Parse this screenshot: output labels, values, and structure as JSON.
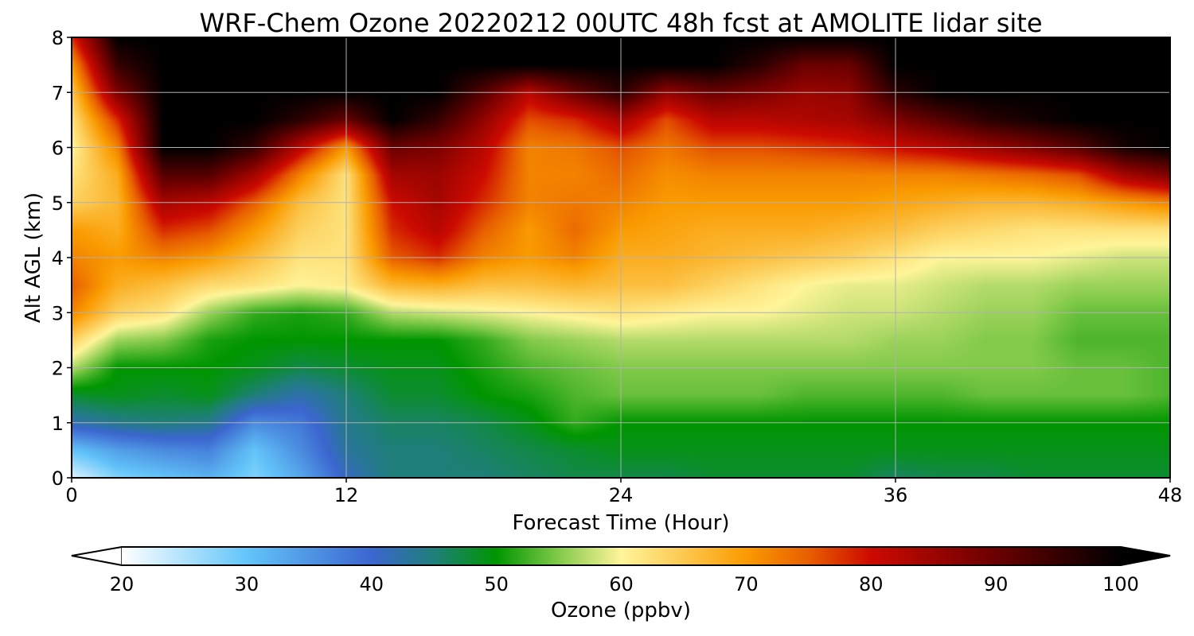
{
  "chart_data": {
    "type": "heatmap",
    "title": "WRF-Chem Ozone  20220212 00UTC 48h fcst at AMOLITE lidar site",
    "xlabel": "Forecast Time (Hour)",
    "ylabel": "Alt AGL (km)",
    "xlim": [
      0,
      48
    ],
    "ylim": [
      0,
      8
    ],
    "x_ticks": [
      "0",
      "12",
      "24",
      "36",
      "48"
    ],
    "y_ticks": [
      "0",
      "1",
      "2",
      "3",
      "4",
      "5",
      "6",
      "7",
      "8"
    ],
    "grid": true,
    "colorbar": {
      "label": "Ozone  (ppbv)",
      "range": [
        20,
        100
      ],
      "ticks": [
        "20",
        "30",
        "40",
        "50",
        "60",
        "70",
        "80",
        "90",
        "100"
      ],
      "extend": "both",
      "orientation": "horizontal",
      "stops": [
        {
          "v": 20,
          "c": "#ffffff"
        },
        {
          "v": 30,
          "c": "#63c5f9"
        },
        {
          "v": 40,
          "c": "#3b66cf"
        },
        {
          "v": 45,
          "c": "#1f7f7a"
        },
        {
          "v": 50,
          "c": "#009600"
        },
        {
          "v": 55,
          "c": "#82ca4a"
        },
        {
          "v": 60,
          "c": "#fff59a"
        },
        {
          "v": 65,
          "c": "#fcc850"
        },
        {
          "v": 70,
          "c": "#fa9b00"
        },
        {
          "v": 75,
          "c": "#e85f00"
        },
        {
          "v": 80,
          "c": "#cc0a00"
        },
        {
          "v": 90,
          "c": "#6a0000"
        },
        {
          "v": 100,
          "c": "#000000"
        }
      ]
    },
    "x": [
      0,
      2,
      4,
      6,
      8,
      10,
      12,
      14,
      16,
      18,
      20,
      22,
      24,
      26,
      28,
      30,
      32,
      34,
      36,
      38,
      40,
      42,
      44,
      46,
      48
    ],
    "y": [
      0,
      0.5,
      1,
      1.5,
      2,
      2.5,
      3,
      3.5,
      4,
      4.5,
      5,
      5.5,
      6,
      6.5,
      7,
      7.5,
      8
    ],
    "z": [
      [
        22,
        28,
        30,
        32,
        28,
        33,
        41,
        45,
        45,
        45,
        46,
        47,
        47,
        47,
        48,
        48,
        48,
        48,
        46,
        47,
        47,
        48,
        48,
        48,
        48
      ],
      [
        30,
        34,
        36,
        37,
        30,
        36,
        43,
        45,
        45,
        46,
        47,
        48,
        49,
        49,
        49,
        49,
        49,
        49,
        49,
        49,
        49,
        49,
        49,
        49,
        49
      ],
      [
        42,
        44,
        45,
        44,
        36,
        38,
        44,
        46,
        46,
        47,
        49,
        52,
        50,
        50,
        50,
        50,
        50,
        50,
        50,
        50,
        50,
        50,
        50,
        50,
        50
      ],
      [
        48,
        49,
        48,
        49,
        45,
        42,
        45,
        48,
        48,
        50,
        51,
        53,
        54,
        54,
        54,
        54,
        53,
        53,
        53,
        53,
        54,
        54,
        54,
        54,
        53
      ],
      [
        57,
        50,
        50,
        50,
        49,
        47,
        48,
        49,
        49,
        51,
        53,
        54,
        55,
        55,
        55,
        55,
        55,
        55,
        55,
        55,
        55,
        55,
        54,
        54,
        53
      ],
      [
        64,
        56,
        55,
        51,
        50,
        50,
        50,
        50,
        50,
        52,
        55,
        56,
        57,
        57,
        57,
        57,
        57,
        57,
        56,
        56,
        55,
        55,
        53,
        53,
        53
      ],
      [
        72,
        64,
        62,
        56,
        52,
        51,
        52,
        57,
        58,
        59,
        60,
        61,
        62,
        61,
        60,
        60,
        59,
        58,
        58,
        57,
        56,
        56,
        54,
        54,
        54
      ],
      [
        75,
        68,
        66,
        63,
        62,
        60,
        61,
        67,
        68,
        66,
        66,
        67,
        66,
        66,
        64,
        62,
        60,
        59,
        59,
        58,
        57,
        57,
        56,
        56,
        56
      ],
      [
        72,
        70,
        72,
        70,
        66,
        62,
        62,
        75,
        78,
        72,
        70,
        72,
        68,
        68,
        67,
        66,
        65,
        64,
        62,
        60,
        60,
        60,
        59,
        58,
        58
      ],
      [
        70,
        68,
        78,
        76,
        70,
        64,
        62,
        78,
        82,
        75,
        70,
        74,
        70,
        69,
        68,
        68,
        68,
        67,
        66,
        64,
        63,
        62,
        62,
        62,
        62
      ],
      [
        64,
        67,
        84,
        82,
        75,
        66,
        62,
        80,
        84,
        78,
        72,
        73,
        72,
        70,
        70,
        70,
        70,
        70,
        69,
        68,
        67,
        67,
        68,
        70,
        72
      ],
      [
        62,
        68,
        92,
        92,
        84,
        72,
        62,
        84,
        85,
        80,
        72,
        72,
        74,
        71,
        72,
        72,
        72,
        72,
        72,
        72,
        73,
        74,
        76,
        84,
        88
      ],
      [
        60,
        72,
        100,
        100,
        95,
        82,
        70,
        90,
        88,
        82,
        72,
        73,
        76,
        73,
        76,
        76,
        77,
        78,
        80,
        82,
        85,
        88,
        92,
        98,
        100
      ],
      [
        62,
        78,
        100,
        100,
        100,
        96,
        90,
        100,
        95,
        86,
        76,
        78,
        84,
        76,
        82,
        82,
        83,
        84,
        88,
        92,
        96,
        98,
        100,
        100,
        100
      ],
      [
        65,
        88,
        100,
        100,
        100,
        100,
        100,
        100,
        100,
        92,
        82,
        90,
        96,
        86,
        90,
        88,
        85,
        86,
        96,
        100,
        100,
        100,
        100,
        100,
        100
      ],
      [
        70,
        95,
        100,
        100,
        100,
        100,
        100,
        100,
        100,
        100,
        100,
        100,
        100,
        100,
        100,
        96,
        90,
        90,
        100,
        100,
        100,
        100,
        100,
        100,
        100
      ],
      [
        78,
        100,
        100,
        100,
        100,
        100,
        100,
        100,
        100,
        100,
        100,
        100,
        100,
        100,
        100,
        100,
        100,
        100,
        100,
        100,
        100,
        100,
        100,
        100,
        100
      ]
    ]
  }
}
